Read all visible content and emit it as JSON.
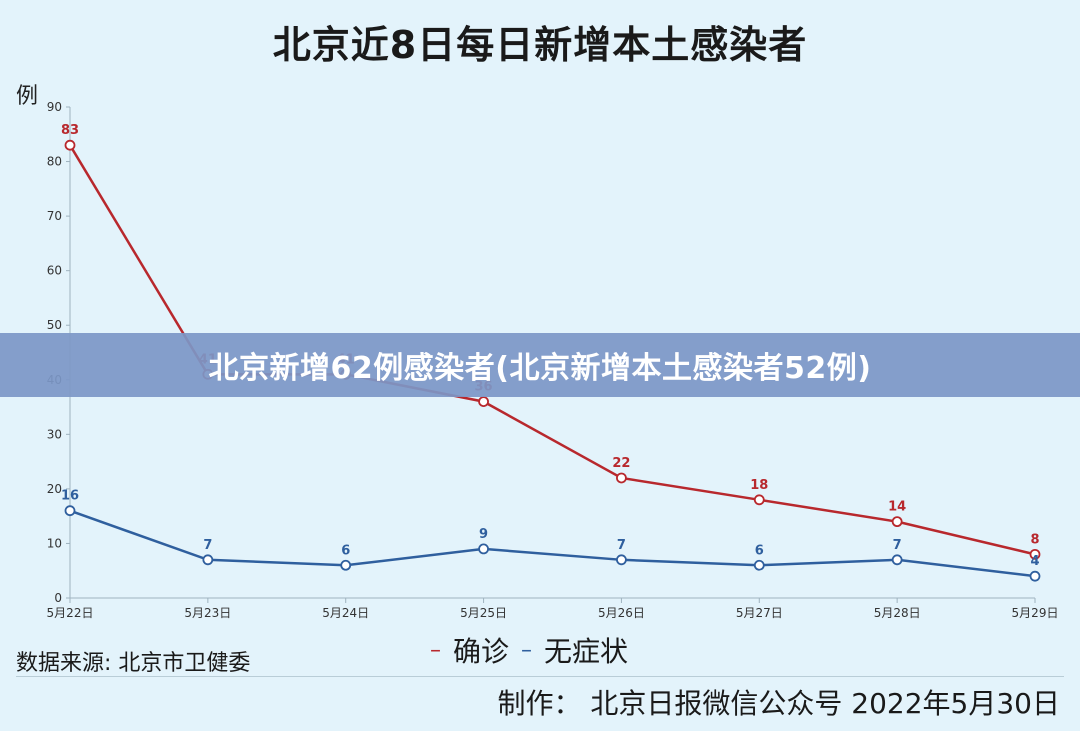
{
  "title": "北京近8日每日新增本土感染者",
  "ylabel": "例",
  "source": "数据来源: 北京市卫健委",
  "credit": "制作：  北京日报微信公众号 2022年5月30日",
  "banner": "北京新增62例感染者(北京新增本土感染者52例)",
  "colors": {
    "confirmed": "#b8282d",
    "asymptomatic": "#2f5f9e",
    "axis": "#9fb3bf",
    "background": "#e3f3fb"
  },
  "chart_data": {
    "type": "line",
    "title": "北京近8日每日新增本土感染者",
    "ylabel": "例",
    "xlabel": "",
    "categories": [
      "5月22日",
      "5月23日",
      "5月24日",
      "5月25日",
      "5月26日",
      "5月27日",
      "5月28日",
      "5月29日"
    ],
    "ylim": [
      0,
      90
    ],
    "yticks": [
      0,
      10,
      20,
      30,
      40,
      50,
      60,
      70,
      80,
      90
    ],
    "grid": false,
    "legend_placement": "bottom-center",
    "series": [
      {
        "name": "确诊",
        "color": "#b8282d",
        "values": [
          83,
          41,
          41,
          36,
          22,
          18,
          14,
          8
        ]
      },
      {
        "name": "无症状",
        "color": "#2f5f9e",
        "values": [
          16,
          7,
          6,
          9,
          7,
          6,
          7,
          4
        ]
      }
    ]
  }
}
